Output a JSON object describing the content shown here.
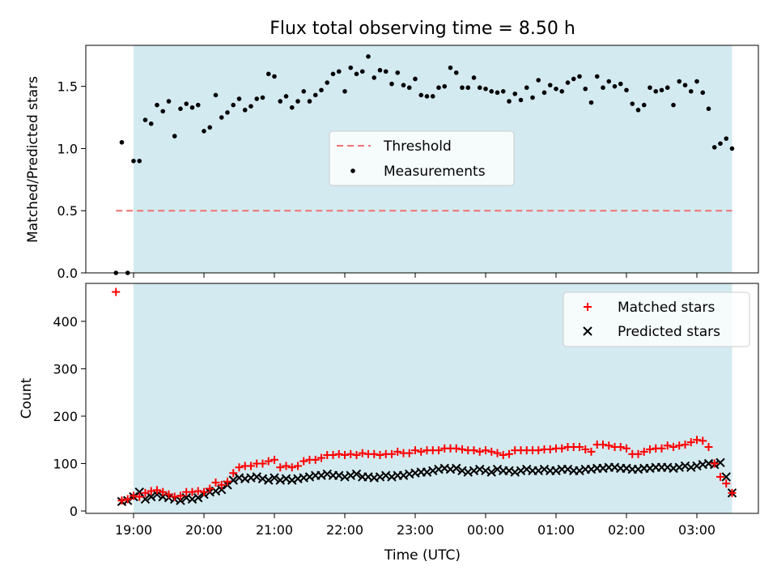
{
  "title": "Flux total observing time = 8.50 h",
  "xlabel": "Time (UTC)",
  "colors": {
    "night_band": "#d3eaf0",
    "threshold": "#f07272",
    "measurements": "#000000",
    "matched": "#ff0000",
    "predicted": "#000000"
  },
  "chart_data": [
    {
      "type": "scatter",
      "panel": "top",
      "ylabel": "Matched/Predicted stars",
      "ylim": [
        0,
        1.83
      ],
      "yticks": [
        0.0,
        0.5,
        1.0,
        1.5
      ],
      "ytick_labels": [
        "0.0",
        "0.5",
        "1.0",
        "1.5"
      ],
      "shaded_span": [
        "19:00",
        "03:30"
      ],
      "legend": {
        "placement": "center",
        "entries": [
          "Threshold",
          "Measurements"
        ]
      },
      "threshold": {
        "name": "Threshold",
        "value": 0.5,
        "x_range": [
          "18:45",
          "03:30"
        ],
        "style": "dashed"
      },
      "series": [
        {
          "name": "Measurements",
          "marker": "dot",
          "x": [
            "18:45",
            "18:50",
            "18:55",
            "19:00",
            "19:05",
            "19:10",
            "19:15",
            "19:20",
            "19:25",
            "19:30",
            "19:35",
            "19:40",
            "19:45",
            "19:50",
            "19:55",
            "20:00",
            "20:05",
            "20:10",
            "20:15",
            "20:20",
            "20:25",
            "20:30",
            "20:35",
            "20:40",
            "20:45",
            "20:50",
            "20:55",
            "21:00",
            "21:05",
            "21:10",
            "21:15",
            "21:20",
            "21:25",
            "21:30",
            "21:35",
            "21:40",
            "21:45",
            "21:50",
            "21:55",
            "22:00",
            "22:05",
            "22:10",
            "22:15",
            "22:20",
            "22:25",
            "22:30",
            "22:35",
            "22:40",
            "22:45",
            "22:50",
            "22:55",
            "23:00",
            "23:05",
            "23:10",
            "23:15",
            "23:20",
            "23:25",
            "23:30",
            "23:35",
            "23:40",
            "23:45",
            "23:50",
            "23:55",
            "00:00",
            "00:05",
            "00:10",
            "00:15",
            "00:20",
            "00:25",
            "00:30",
            "00:35",
            "00:40",
            "00:45",
            "00:50",
            "00:55",
            "01:00",
            "01:05",
            "01:10",
            "01:15",
            "01:20",
            "01:25",
            "01:30",
            "01:35",
            "01:40",
            "01:45",
            "01:50",
            "01:55",
            "02:00",
            "02:05",
            "02:10",
            "02:15",
            "02:20",
            "02:25",
            "02:30",
            "02:35",
            "02:40",
            "02:45",
            "02:50",
            "02:55",
            "03:00",
            "03:05",
            "03:10",
            "03:15",
            "03:20",
            "03:25",
            "03:30"
          ],
          "y": [
            0.0,
            1.05,
            0.0,
            0.9,
            0.9,
            1.23,
            1.2,
            1.35,
            1.3,
            1.38,
            1.1,
            1.32,
            1.36,
            1.33,
            1.35,
            1.14,
            1.17,
            1.43,
            1.25,
            1.29,
            1.35,
            1.4,
            1.31,
            1.34,
            1.4,
            1.41,
            1.6,
            1.58,
            1.38,
            1.42,
            1.33,
            1.38,
            1.46,
            1.38,
            1.43,
            1.47,
            1.53,
            1.6,
            1.62,
            1.46,
            1.65,
            1.6,
            1.62,
            1.74,
            1.57,
            1.63,
            1.62,
            1.52,
            1.61,
            1.51,
            1.49,
            1.56,
            1.43,
            1.42,
            1.42,
            1.49,
            1.5,
            1.65,
            1.61,
            1.49,
            1.49,
            1.57,
            1.49,
            1.48,
            1.46,
            1.45,
            1.46,
            1.38,
            1.44,
            1.39,
            1.49,
            1.41,
            1.55,
            1.45,
            1.51,
            1.48,
            1.46,
            1.53,
            1.56,
            1.58,
            1.48,
            1.37,
            1.58,
            1.49,
            1.54,
            1.5,
            1.52,
            1.47,
            1.36,
            1.31,
            1.35,
            1.49,
            1.46,
            1.47,
            1.49,
            1.35,
            1.54,
            1.51,
            1.46,
            1.54,
            1.45,
            1.32,
            1.01,
            1.04,
            1.08,
            1.0
          ]
        }
      ]
    },
    {
      "type": "scatter",
      "panel": "bottom",
      "ylabel": "Count",
      "ylim": [
        -5,
        480
      ],
      "yticks": [
        0,
        100,
        200,
        300,
        400
      ],
      "ytick_labels": [
        "0",
        "100",
        "200",
        "300",
        "400"
      ],
      "xticks": [
        "19:00",
        "20:00",
        "21:00",
        "22:00",
        "23:00",
        "00:00",
        "01:00",
        "02:00",
        "03:00"
      ],
      "xtick_labels": [
        "19:00",
        "20:00",
        "21:00",
        "22:00",
        "23:00",
        "00:00",
        "01:00",
        "02:00",
        "03:00"
      ],
      "shaded_span": [
        "19:00",
        "03:30"
      ],
      "legend": {
        "placement": "top-right",
        "entries": [
          "Matched stars",
          "Predicted stars"
        ]
      },
      "series": [
        {
          "name": "Matched stars",
          "marker": "plus",
          "x": [
            "18:45",
            "18:50",
            "18:55",
            "19:00",
            "19:05",
            "19:10",
            "19:15",
            "19:20",
            "19:25",
            "19:30",
            "19:35",
            "19:40",
            "19:45",
            "19:50",
            "19:55",
            "20:00",
            "20:05",
            "20:10",
            "20:15",
            "20:20",
            "20:25",
            "20:30",
            "20:35",
            "20:40",
            "20:45",
            "20:50",
            "20:55",
            "21:00",
            "21:05",
            "21:10",
            "21:15",
            "21:20",
            "21:25",
            "21:30",
            "21:35",
            "21:40",
            "21:45",
            "21:50",
            "21:55",
            "22:00",
            "22:05",
            "22:10",
            "22:15",
            "22:20",
            "22:25",
            "22:30",
            "22:35",
            "22:40",
            "22:45",
            "22:50",
            "22:55",
            "23:00",
            "23:05",
            "23:10",
            "23:15",
            "23:20",
            "23:25",
            "23:30",
            "23:35",
            "23:40",
            "23:45",
            "23:50",
            "23:55",
            "00:00",
            "00:05",
            "00:10",
            "00:15",
            "00:20",
            "00:25",
            "00:30",
            "00:35",
            "00:40",
            "00:45",
            "00:50",
            "00:55",
            "01:00",
            "01:05",
            "01:10",
            "01:15",
            "01:20",
            "01:25",
            "01:30",
            "01:35",
            "01:40",
            "01:45",
            "01:50",
            "01:55",
            "02:00",
            "02:05",
            "02:10",
            "02:15",
            "02:20",
            "02:25",
            "02:30",
            "02:35",
            "02:40",
            "02:45",
            "02:50",
            "02:55",
            "03:00",
            "03:05",
            "03:10",
            "03:15",
            "03:20",
            "03:25",
            "03:30"
          ],
          "y": [
            462,
            22,
            25,
            32,
            30,
            38,
            42,
            44,
            40,
            35,
            30,
            32,
            40,
            40,
            42,
            40,
            47,
            60,
            55,
            62,
            80,
            92,
            95,
            95,
            100,
            100,
            105,
            108,
            92,
            95,
            92,
            95,
            105,
            108,
            108,
            112,
            118,
            118,
            120,
            118,
            120,
            118,
            122,
            120,
            120,
            118,
            120,
            120,
            125,
            122,
            122,
            128,
            125,
            128,
            128,
            128,
            132,
            132,
            132,
            130,
            128,
            128,
            125,
            128,
            125,
            122,
            118,
            120,
            128,
            128,
            128,
            128,
            128,
            130,
            130,
            132,
            132,
            135,
            135,
            135,
            130,
            125,
            140,
            140,
            138,
            135,
            135,
            132,
            120,
            120,
            125,
            130,
            132,
            132,
            138,
            135,
            138,
            140,
            145,
            150,
            148,
            135,
            100,
            72,
            58,
            38
          ]
        },
        {
          "name": "Predicted stars",
          "marker": "x",
          "x": [
            "18:50",
            "18:55",
            "19:00",
            "19:05",
            "19:10",
            "19:15",
            "19:20",
            "19:25",
            "19:30",
            "19:35",
            "19:40",
            "19:45",
            "19:50",
            "19:55",
            "20:00",
            "20:05",
            "20:10",
            "20:15",
            "20:20",
            "20:25",
            "20:30",
            "20:35",
            "20:40",
            "20:45",
            "20:50",
            "20:55",
            "21:00",
            "21:05",
            "21:10",
            "21:15",
            "21:20",
            "21:25",
            "21:30",
            "21:35",
            "21:40",
            "21:45",
            "21:50",
            "21:55",
            "22:00",
            "22:05",
            "22:10",
            "22:15",
            "22:20",
            "22:25",
            "22:30",
            "22:35",
            "22:40",
            "22:45",
            "22:50",
            "22:55",
            "23:00",
            "23:05",
            "23:10",
            "23:15",
            "23:20",
            "23:25",
            "23:30",
            "23:35",
            "23:40",
            "23:45",
            "23:50",
            "23:55",
            "00:00",
            "00:05",
            "00:10",
            "00:15",
            "00:20",
            "00:25",
            "00:30",
            "00:35",
            "00:40",
            "00:45",
            "00:50",
            "00:55",
            "01:00",
            "01:05",
            "01:10",
            "01:15",
            "01:20",
            "01:25",
            "01:30",
            "01:35",
            "01:40",
            "01:45",
            "01:50",
            "01:55",
            "02:00",
            "02:05",
            "02:10",
            "02:15",
            "02:20",
            "02:25",
            "02:30",
            "02:35",
            "02:40",
            "02:45",
            "02:50",
            "02:55",
            "03:00",
            "03:05",
            "03:10",
            "03:15",
            "03:20",
            "03:25",
            "03:30"
          ],
          "y": [
            20,
            22,
            30,
            40,
            25,
            30,
            35,
            30,
            28,
            25,
            22,
            28,
            25,
            28,
            35,
            40,
            42,
            45,
            55,
            65,
            70,
            68,
            70,
            72,
            68,
            65,
            70,
            65,
            68,
            65,
            68,
            70,
            72,
            75,
            75,
            78,
            75,
            75,
            72,
            75,
            78,
            72,
            72,
            70,
            72,
            75,
            72,
            75,
            75,
            78,
            80,
            82,
            82,
            85,
            88,
            90,
            88,
            90,
            85,
            82,
            85,
            88,
            85,
            82,
            88,
            85,
            85,
            82,
            85,
            88,
            85,
            85,
            88,
            85,
            85,
            88,
            88,
            85,
            85,
            88,
            88,
            90,
            90,
            92,
            92,
            90,
            90,
            88,
            88,
            90,
            90,
            92,
            92,
            92,
            90,
            92,
            95,
            92,
            95,
            98,
            100,
            98,
            102,
            72,
            38
          ]
        }
      ]
    }
  ]
}
